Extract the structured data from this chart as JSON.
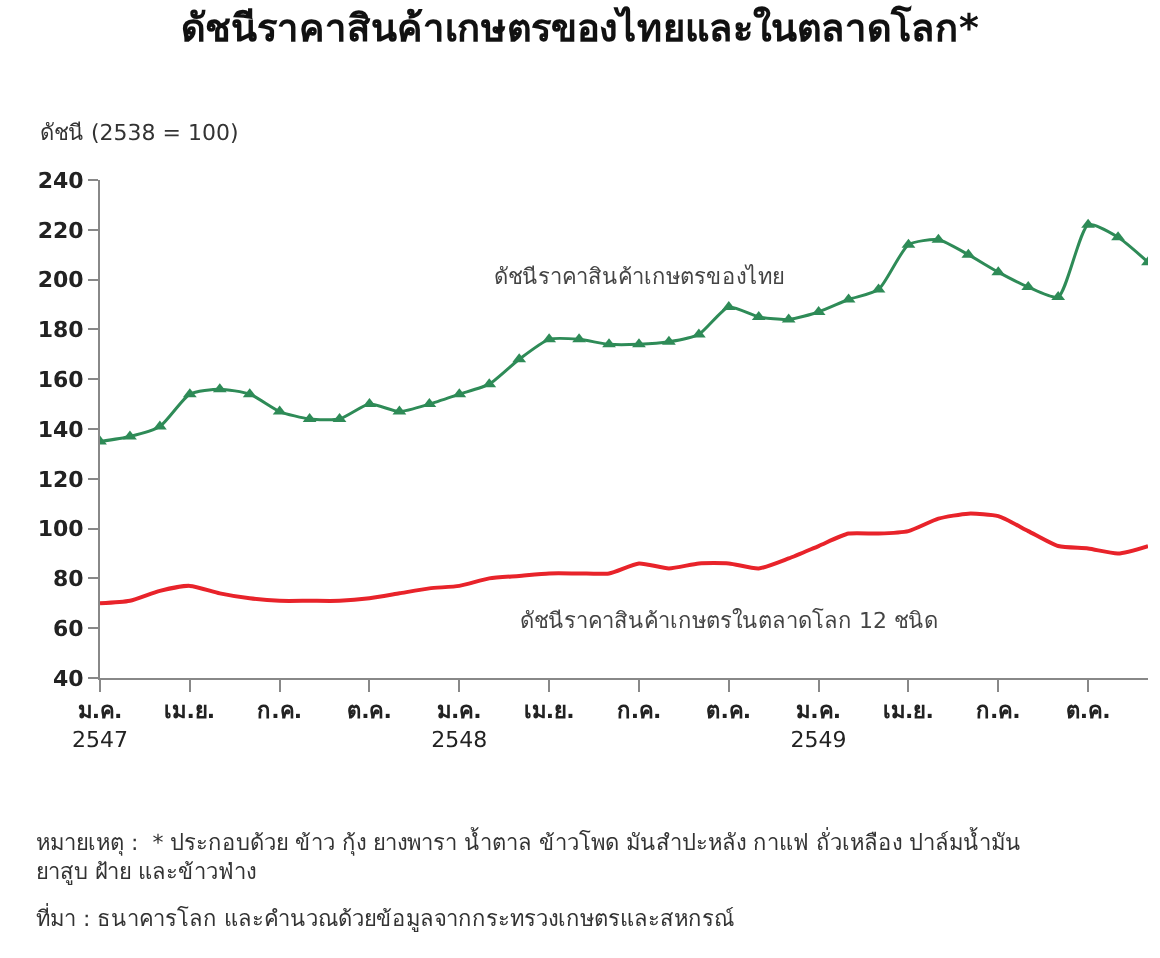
{
  "chart_data": {
    "type": "line",
    "title": "ดัชนีราคาสินค้าเกษตรของไทยและในตลาดโลก*",
    "ylabel": "ดัชนี (2538 = 100)",
    "categories": [
      "ม.ค.\n2547",
      null,
      null,
      "เม.ย.",
      null,
      null,
      "ก.ค.",
      null,
      null,
      "ต.ค.",
      null,
      null,
      "ม.ค.\n2548",
      null,
      null,
      "เม.ย.",
      null,
      null,
      "ก.ค.",
      null,
      null,
      "ต.ค.",
      null,
      null,
      "ม.ค.\n2549",
      null,
      null,
      "เม.ย.",
      null,
      null,
      "ก.ค.",
      null,
      null,
      "ต.ค.",
      null,
      null
    ],
    "series": [
      {
        "name": "ดัชนีราคาสินค้าเกษตรของไทย",
        "color": "#2e8b57",
        "marker": "triangle",
        "values": [
          135,
          137,
          141,
          154,
          156,
          154,
          147,
          144,
          144,
          150,
          147,
          150,
          154,
          158,
          168,
          176,
          176,
          174,
          174,
          175,
          178,
          189,
          185,
          184,
          187,
          192,
          196,
          214,
          216,
          210,
          203,
          197,
          193,
          222,
          217,
          207
        ]
      },
      {
        "name": "ดัชนีราคาสินค้าเกษตรในตลาดโลก 12 ชนิด",
        "color": "#e8232a",
        "marker": "none",
        "values": [
          70,
          71,
          75,
          77,
          74,
          72,
          71,
          71,
          71,
          72,
          74,
          76,
          77,
          80,
          81,
          82,
          82,
          82,
          86,
          84,
          86,
          86,
          84,
          88,
          93,
          98,
          98,
          99,
          104,
          106,
          105,
          99,
          93,
          92,
          90,
          93
        ]
      }
    ],
    "ylim": [
      40,
      240
    ],
    "yticks": [
      40,
      60,
      80,
      100,
      120,
      140,
      160,
      180,
      200,
      220,
      240
    ],
    "legend": false,
    "annotations": [
      "หมายเหตุ :  * ประกอบด้วย ข้าว กุ้ง ยางพารา น้ำตาล ข้าวโพด มันสำปะหลัง กาแฟ ถั่วเหลือง ปาล์มน้ำมัน\nยาสูบ ฝ้าย และข้าวฟ่าง",
      "ที่มา : ธนาคารโลก และคำนวณด้วยข้อมูลจากกระทรวงเกษตรและสหกรณ์"
    ]
  }
}
